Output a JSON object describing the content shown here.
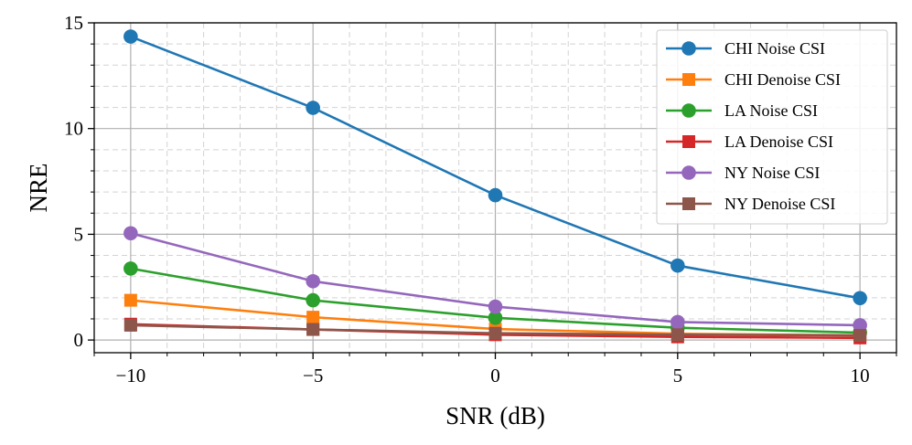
{
  "chart_data": {
    "type": "line",
    "xlabel": "SNR (dB)",
    "ylabel": "NRE",
    "x": [
      -10,
      -5,
      0,
      5,
      10
    ],
    "xlim": [
      -11,
      11
    ],
    "ylim": [
      -0.6,
      15
    ],
    "xticks": [
      -10,
      -5,
      0,
      5,
      10
    ],
    "xtick_labels": [
      "−10",
      "−5",
      "0",
      "5",
      "10"
    ],
    "yticks": [
      0,
      5,
      10,
      15
    ],
    "ytick_labels": [
      "0",
      "5",
      "10",
      "15"
    ],
    "grid": true,
    "minor_grid": true,
    "legend_position": "top-right",
    "series": [
      {
        "name": "CHI Noise CSI",
        "color": "#1f77b4",
        "marker": "circle",
        "values": [
          14.35,
          10.98,
          6.85,
          3.52,
          1.98
        ]
      },
      {
        "name": "CHI Denoise CSI",
        "color": "#ff7f0e",
        "marker": "square",
        "values": [
          1.88,
          1.08,
          0.52,
          0.3,
          0.22
        ]
      },
      {
        "name": "LA Noise CSI",
        "color": "#2ca02c",
        "marker": "circle",
        "values": [
          3.38,
          1.88,
          1.05,
          0.58,
          0.35
        ]
      },
      {
        "name": "LA Denoise CSI",
        "color": "#d62728",
        "marker": "square",
        "values": [
          0.75,
          0.5,
          0.25,
          0.15,
          0.1
        ]
      },
      {
        "name": "NY Noise CSI",
        "color": "#9467bd",
        "marker": "circle",
        "values": [
          5.05,
          2.78,
          1.58,
          0.85,
          0.7
        ]
      },
      {
        "name": "NY Denoise CSI",
        "color": "#8c564b",
        "marker": "square",
        "values": [
          0.7,
          0.5,
          0.32,
          0.25,
          0.22
        ]
      }
    ]
  }
}
